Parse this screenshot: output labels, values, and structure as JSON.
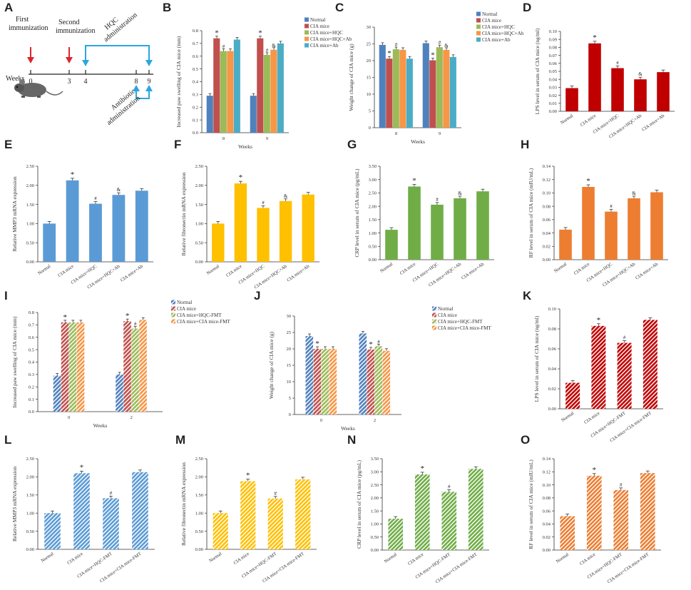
{
  "figure": {
    "panel_labels": [
      "A",
      "B",
      "C",
      "D",
      "E",
      "F",
      "G",
      "H",
      "I",
      "J",
      "K",
      "L",
      "M",
      "N",
      "O"
    ]
  },
  "timeline": {
    "first_immunization": "First\nimmunization",
    "second_immunization": "Second\nimmunization",
    "hqc_label": "HQC\nadministration",
    "antibiotic_label": "Antibiotic\nadministration",
    "weeks_label": "Weeks",
    "week_ticks": [
      "0",
      "3",
      "4",
      "8",
      "9"
    ],
    "colors": {
      "red": "#d9262e",
      "blue": "#2aa6e0"
    }
  },
  "chart_data": [
    {
      "id": "B",
      "type": "bar",
      "title": "",
      "xlabel": "Weeks",
      "ylabel": "Increased paw swelling of CIA mice (mm)",
      "categories": [
        "8",
        "9"
      ],
      "ylim": [
        0,
        0.8
      ],
      "yticks": [
        0,
        0.1,
        0.2,
        0.3,
        0.4,
        0.5,
        0.6,
        0.7,
        0.8
      ],
      "ytick_decimals": 1,
      "pattern": "solid",
      "series": [
        {
          "name": "Normal",
          "color": "#4f81bd",
          "values": [
            0.29,
            0.29
          ],
          "marks": [
            "",
            ""
          ]
        },
        {
          "name": "CIA mice",
          "color": "#c0504d",
          "values": [
            0.74,
            0.74
          ],
          "marks": [
            "*",
            "*"
          ]
        },
        {
          "name": "CIA mice+HQC",
          "color": "#9bbb59",
          "values": [
            0.64,
            0.61
          ],
          "marks": [
            "#",
            "#"
          ]
        },
        {
          "name": "CIA mice+HQC+Ab",
          "color": "#f79646",
          "values": [
            0.64,
            0.65
          ],
          "marks": [
            "",
            "&"
          ]
        },
        {
          "name": "CIA mice+Ab",
          "color": "#4bacc6",
          "values": [
            0.73,
            0.7
          ],
          "marks": [
            "",
            ""
          ]
        }
      ]
    },
    {
      "id": "C",
      "type": "bar",
      "title": "",
      "xlabel": "Weeks",
      "ylabel": "Weight change of CIA mice (g)",
      "categories": [
        "8",
        "9"
      ],
      "ylim": [
        0,
        30
      ],
      "yticks": [
        0,
        5,
        10,
        15,
        20,
        25,
        30
      ],
      "ytick_decimals": 0,
      "pattern": "solid",
      "series": [
        {
          "name": "Normal",
          "color": "#4f81bd",
          "values": [
            24.7,
            25.2
          ],
          "marks": [
            "",
            ""
          ]
        },
        {
          "name": "CIA mice",
          "color": "#c0504d",
          "values": [
            20.6,
            20.1
          ],
          "marks": [
            "*",
            "*"
          ]
        },
        {
          "name": "CIA mice+HQC",
          "color": "#9bbb59",
          "values": [
            23.4,
            24.0
          ],
          "marks": [
            "#",
            "#"
          ]
        },
        {
          "name": "CIA mice+HQC+Ab",
          "color": "#f79646",
          "values": [
            23.2,
            23.2
          ],
          "marks": [
            "",
            "&"
          ]
        },
        {
          "name": "CIA mice+Ab",
          "color": "#4bacc6",
          "values": [
            20.6,
            21.1
          ],
          "marks": [
            "",
            ""
          ]
        }
      ]
    },
    {
      "id": "D",
      "type": "bar",
      "title": "",
      "xlabel": "",
      "ylabel": "LPS level in serum of CIA mice (ng/ml)",
      "categories": [
        "Normal",
        "CIA mice",
        "CIA mice+HQC",
        "CIA mice+HQC+Ab",
        "CIA mice+Ab"
      ],
      "ylim": [
        0,
        0.1
      ],
      "yticks": [
        0,
        0.01,
        0.02,
        0.03,
        0.04,
        0.05,
        0.06,
        0.07,
        0.08,
        0.09,
        0.1
      ],
      "ytick_decimals": 2,
      "pattern": "solid",
      "color": "#c00000",
      "values": [
        0.029,
        0.085,
        0.054,
        0.04,
        0.049
      ],
      "marks": [
        "",
        "*",
        "#",
        "&",
        ""
      ]
    },
    {
      "id": "E",
      "type": "bar",
      "title": "",
      "xlabel": "",
      "ylabel": "Relative MMP3 mRNA expression",
      "categories": [
        "Normal",
        "CIA mice",
        "CIA mice+HQC",
        "CIA mice+HQC+Ab",
        "CIA mice+Ab"
      ],
      "ylim": [
        0,
        2.5
      ],
      "yticks": [
        0,
        0.5,
        1.0,
        1.5,
        2.0,
        2.5
      ],
      "ytick_decimals": 2,
      "pattern": "solid",
      "color": "#5b9bd5",
      "values": [
        1.0,
        2.13,
        1.52,
        1.75,
        1.86
      ],
      "marks": [
        "",
        "*",
        "#",
        "&",
        ""
      ]
    },
    {
      "id": "F",
      "type": "bar",
      "title": "",
      "xlabel": "",
      "ylabel": "Relative fibronectin mRNA expression",
      "categories": [
        "Normal",
        "CIA mice",
        "CIA mice+HQC",
        "CIA mice+HQC+Ab",
        "CIA mice+Ab"
      ],
      "ylim": [
        0,
        2.5
      ],
      "yticks": [
        0,
        0.5,
        1.0,
        1.5,
        2.0,
        2.5
      ],
      "ytick_decimals": 2,
      "pattern": "solid",
      "color": "#ffc000",
      "values": [
        1.0,
        2.05,
        1.41,
        1.59,
        1.76
      ],
      "marks": [
        "",
        "*",
        "#",
        "&",
        ""
      ]
    },
    {
      "id": "G",
      "type": "bar",
      "title": "",
      "xlabel": "",
      "ylabel": "CRP level in serum of CIA mice (pg/mL)",
      "categories": [
        "Normal",
        "CIA mice",
        "CIA mice+HQC",
        "CIA mice+HQC+Ab",
        "CIA mice+Ab"
      ],
      "ylim": [
        0,
        3.5
      ],
      "yticks": [
        0,
        0.5,
        1.0,
        1.5,
        2.0,
        2.5,
        3.0,
        3.5
      ],
      "ytick_decimals": 2,
      "pattern": "solid",
      "color": "#70ad47",
      "values": [
        1.12,
        2.74,
        2.06,
        2.3,
        2.56
      ],
      "marks": [
        "",
        "*",
        "#",
        "&",
        ""
      ]
    },
    {
      "id": "H",
      "type": "bar",
      "title": "",
      "xlabel": "",
      "ylabel": "RF level in serum of CIA mice (mIU/mL)",
      "categories": [
        "Normal",
        "CIA mice",
        "CIA mice+HQC",
        "CIA mice+HQC+Ab",
        "CIA mice+Ab"
      ],
      "ylim": [
        0,
        0.14
      ],
      "yticks": [
        0,
        0.02,
        0.04,
        0.06,
        0.08,
        0.1,
        0.12,
        0.14
      ],
      "ytick_decimals": 2,
      "pattern": "solid",
      "color": "#ed7d31",
      "values": [
        0.045,
        0.109,
        0.072,
        0.092,
        0.101
      ],
      "marks": [
        "",
        "*",
        "#",
        "&",
        ""
      ]
    },
    {
      "id": "I",
      "type": "bar",
      "title": "",
      "xlabel": "Weeks",
      "ylabel": "Increased paw swelling of CIA mice (mm)",
      "categories": [
        "0",
        "2"
      ],
      "ylim": [
        0,
        0.8
      ],
      "yticks": [
        0,
        0.1,
        0.2,
        0.3,
        0.4,
        0.5,
        0.6,
        0.7,
        0.8
      ],
      "ytick_decimals": 1,
      "pattern": "hatch",
      "series": [
        {
          "name": "Normal",
          "color": "#4f81bd",
          "values": [
            0.29,
            0.3
          ],
          "marks": [
            "",
            ""
          ]
        },
        {
          "name": "CIA mice",
          "color": "#c0504d",
          "values": [
            0.72,
            0.73
          ],
          "marks": [
            "*",
            "*"
          ]
        },
        {
          "name": "CIA mice+HQC-FMT",
          "color": "#9bbb59",
          "values": [
            0.72,
            0.67
          ],
          "marks": [
            "",
            "#"
          ]
        },
        {
          "name": "CIA mice+CIA mice-FMT",
          "color": "#f79646",
          "values": [
            0.72,
            0.74
          ],
          "marks": [
            "",
            ""
          ]
        }
      ]
    },
    {
      "id": "J",
      "type": "bar",
      "title": "",
      "xlabel": "Weeks",
      "ylabel": "Weight change of CIA mice (g)",
      "categories": [
        "0",
        "2"
      ],
      "ylim": [
        0,
        30
      ],
      "yticks": [
        0,
        5,
        10,
        15,
        20,
        25,
        30
      ],
      "ytick_decimals": 0,
      "pattern": "hatch",
      "series": [
        {
          "name": "Normal",
          "color": "#4f81bd",
          "values": [
            23.9,
            24.7
          ],
          "marks": [
            "",
            ""
          ]
        },
        {
          "name": "CIA mice",
          "color": "#c0504d",
          "values": [
            20.0,
            19.8
          ],
          "marks": [
            "*",
            "*"
          ]
        },
        {
          "name": "CIA mice+HQC-FMT",
          "color": "#9bbb59",
          "values": [
            20.0,
            20.8
          ],
          "marks": [
            "",
            "#"
          ]
        },
        {
          "name": "CIA mice+CIA mice-FMT",
          "color": "#f79646",
          "values": [
            20.0,
            19.4
          ],
          "marks": [
            "",
            ""
          ]
        }
      ]
    },
    {
      "id": "K",
      "type": "bar",
      "title": "",
      "xlabel": "",
      "ylabel": "LPS level in serum of CIA mice (ng/ml)",
      "categories": [
        "Normal",
        "CIA mice",
        "CIA mice+HQC-FMT",
        "CIA mice+CIA mice-FMT"
      ],
      "ylim": [
        0,
        0.1
      ],
      "yticks": [
        0,
        0.02,
        0.04,
        0.06,
        0.08,
        0.1
      ],
      "ytick_decimals": 2,
      "pattern": "hatch",
      "color": "#c00000",
      "values": [
        0.026,
        0.083,
        0.066,
        0.089
      ],
      "marks": [
        "",
        "*",
        "#",
        ""
      ]
    },
    {
      "id": "L",
      "type": "bar",
      "title": "",
      "xlabel": "",
      "ylabel": "Relative MMP3 mRNA expression",
      "categories": [
        "Normal",
        "CIA mice",
        "CIA mice+HQC-FMT",
        "CIA mice+CIA mice-FMT"
      ],
      "ylim": [
        0,
        2.5
      ],
      "yticks": [
        0,
        0.5,
        1.0,
        1.5,
        2.0,
        2.5
      ],
      "ytick_decimals": 2,
      "pattern": "hatch",
      "color": "#5b9bd5",
      "values": [
        1.0,
        2.1,
        1.41,
        2.13
      ],
      "marks": [
        "",
        "*",
        "#",
        ""
      ]
    },
    {
      "id": "M",
      "type": "bar",
      "title": "",
      "xlabel": "",
      "ylabel": "Relative fibronectin mRNA expression",
      "categories": [
        "Normal",
        "CIA mice",
        "CIA mice+HQC-FMT",
        "CIA mice+CIA mice-FMT"
      ],
      "ylim": [
        0,
        2.5
      ],
      "yticks": [
        0,
        0.5,
        1.0,
        1.5,
        2.0,
        2.5
      ],
      "ytick_decimals": 2,
      "pattern": "hatch",
      "color": "#ffc000",
      "values": [
        1.0,
        1.88,
        1.4,
        1.93
      ],
      "marks": [
        "",
        "*",
        "#",
        ""
      ]
    },
    {
      "id": "N",
      "type": "bar",
      "title": "",
      "xlabel": "",
      "ylabel": "CRP level in serum of CIA mice (pg/mL)",
      "categories": [
        "Normal",
        "CIA mice",
        "CIA mice+HQC-FMT",
        "CIA mice+CIA mice-FMT"
      ],
      "ylim": [
        0,
        3.5
      ],
      "yticks": [
        0,
        0.5,
        1.0,
        1.5,
        2.0,
        2.5,
        3.0,
        3.5
      ],
      "ytick_decimals": 2,
      "pattern": "hatch",
      "color": "#70ad47",
      "values": [
        1.2,
        2.9,
        2.23,
        3.11
      ],
      "marks": [
        "",
        "*",
        "#",
        ""
      ]
    },
    {
      "id": "O",
      "type": "bar",
      "title": "",
      "xlabel": "",
      "ylabel": "RF level in serum of CIA mice (mIU/mL)",
      "categories": [
        "Normal",
        "CIA mice",
        "CIA mice+HQC-FMT",
        "CIA mice+CIA mice-FMT"
      ],
      "ylim": [
        0,
        0.14
      ],
      "yticks": [
        0,
        0.02,
        0.04,
        0.06,
        0.08,
        0.1,
        0.12,
        0.14
      ],
      "ytick_decimals": 2,
      "pattern": "hatch",
      "color": "#ed7d31",
      "values": [
        0.052,
        0.114,
        0.092,
        0.118
      ],
      "marks": [
        "",
        "*",
        "#",
        ""
      ]
    }
  ]
}
